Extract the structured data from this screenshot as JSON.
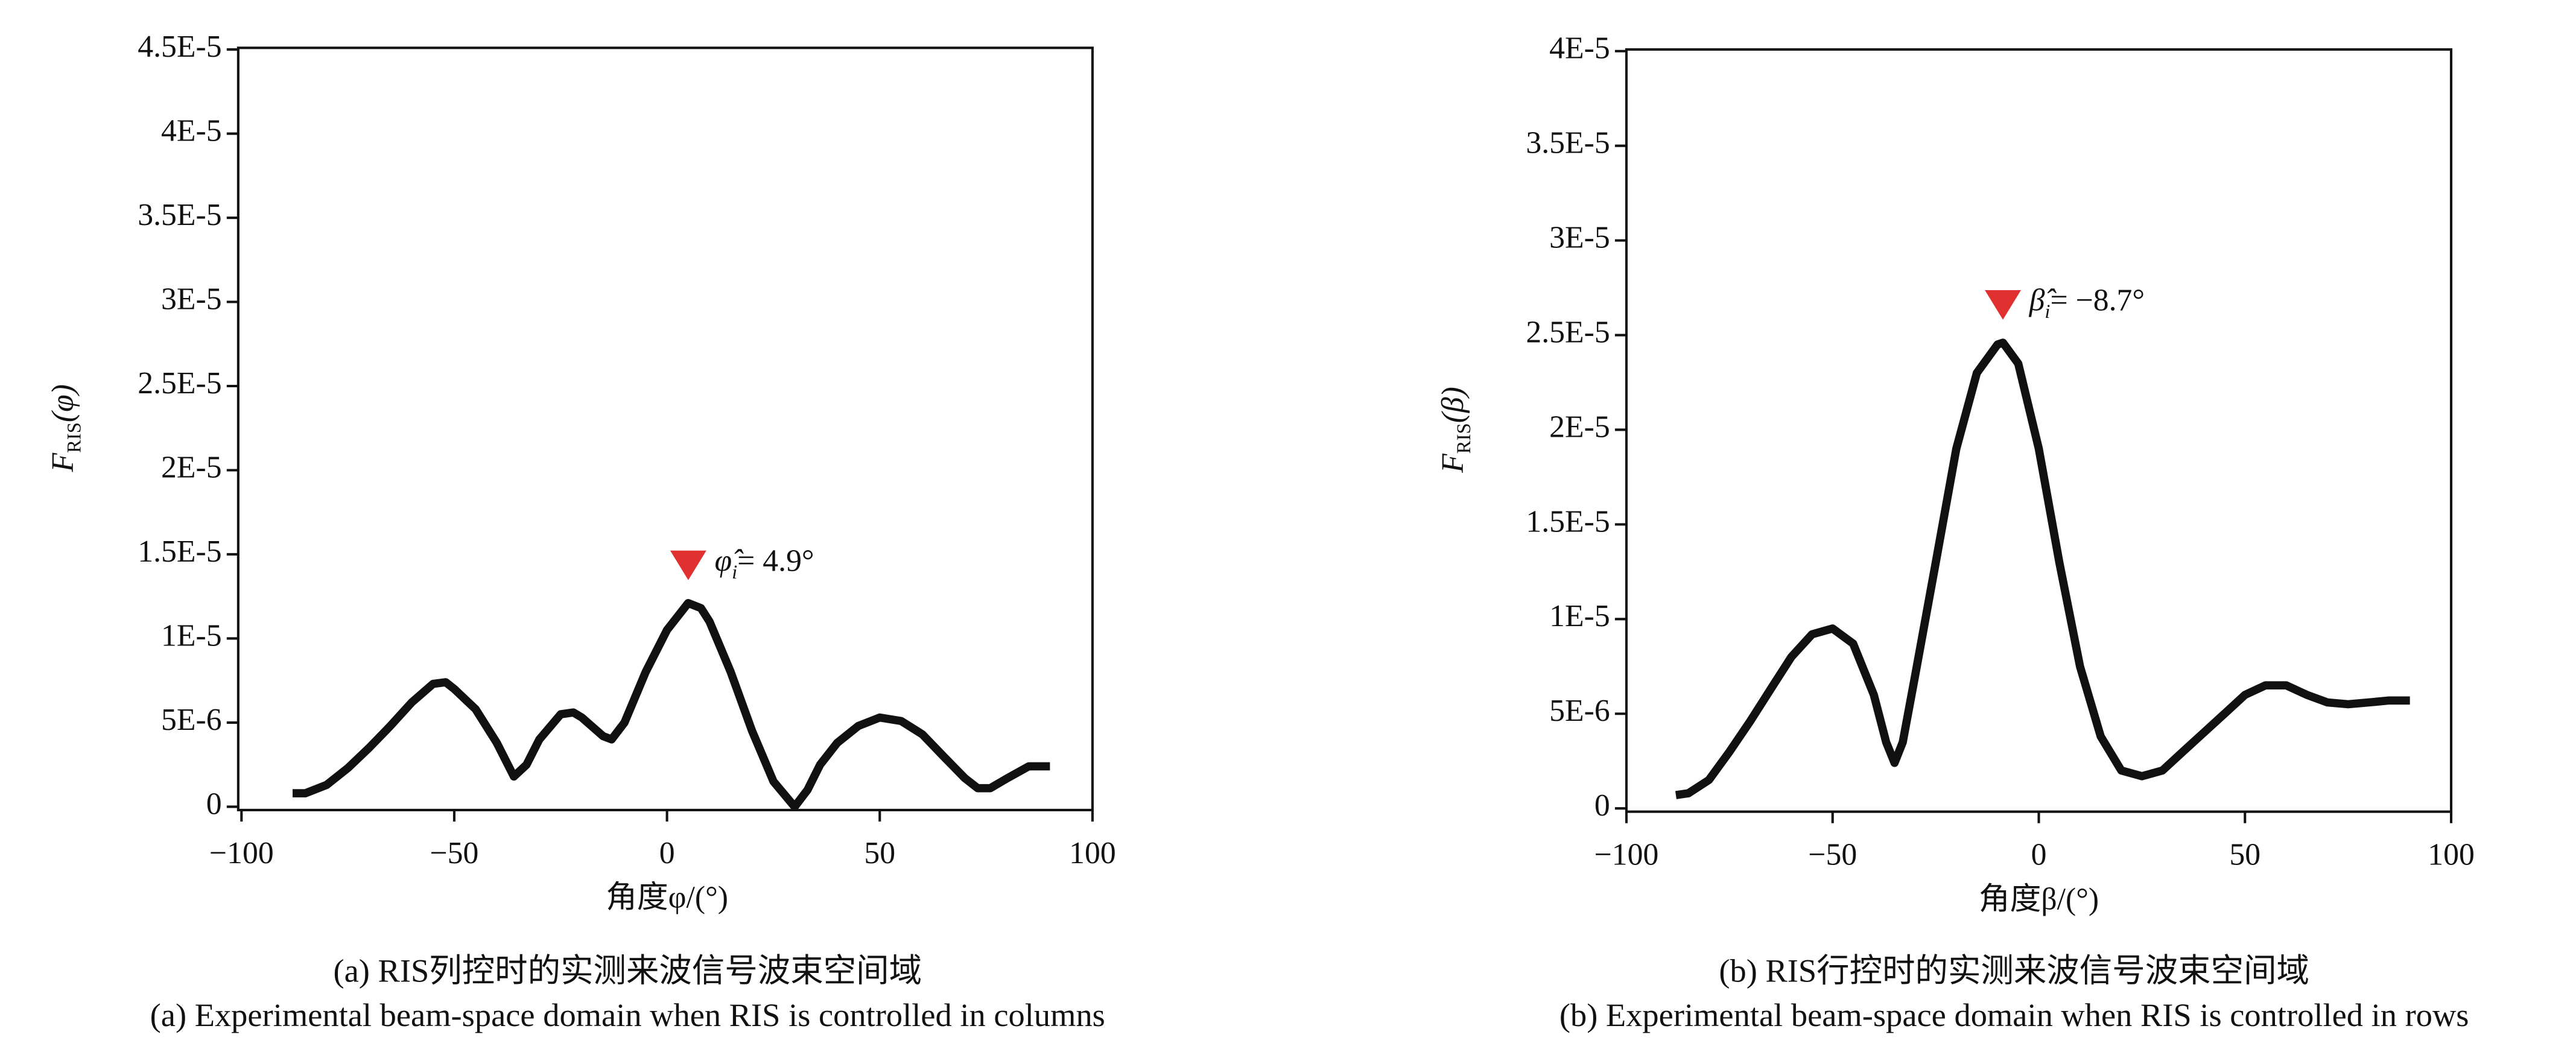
{
  "chart_data": [
    {
      "type": "line",
      "ylabel": {
        "main": "F",
        "sub": "RIS",
        "arg": "(φ)"
      },
      "xlabel": "角度φ/(°)",
      "caption": [
        "(a) RIS列控时的实测来波信号波束空间域",
        "(a) Experimental beam-space domain when RIS is controlled in columns"
      ],
      "annotation": {
        "symbol": "φ̂",
        "sub": "i",
        "text": "=  4.9°"
      },
      "xlim": [
        -100,
        100
      ],
      "xticks": [
        {
          "value": -100,
          "label": "−100"
        },
        {
          "value": -50,
          "label": "−50"
        },
        0,
        50,
        100
      ],
      "ylim": [
        0,
        4.5e-05
      ],
      "yticks": [
        0,
        {
          "value": 5e-06,
          "label": "5E-6"
        },
        {
          "value": 1e-05,
          "label": "1E-5"
        },
        {
          "value": 1.5e-05,
          "label": "1.5E-5"
        },
        {
          "value": 2e-05,
          "label": "2E-5"
        },
        {
          "value": 2.5e-05,
          "label": "2.5E-5"
        },
        {
          "value": 3e-05,
          "label": "3E-5"
        },
        {
          "value": 3.5e-05,
          "label": "3.5E-5"
        },
        {
          "value": 4e-05,
          "label": "4E-5"
        },
        {
          "value": 4.5e-05,
          "label": "4.5E-5"
        }
      ],
      "color": "#111111",
      "marker_color": "#e03030",
      "x": [
        -88,
        -85,
        -80,
        -75,
        -70,
        -65,
        -60,
        -55,
        -52,
        -50,
        -45,
        -40,
        -36,
        -33,
        -30,
        -25,
        -22,
        -20,
        -15,
        -13,
        -10,
        -5,
        0,
        5,
        8,
        10,
        15,
        20,
        25,
        30,
        33,
        36,
        40,
        45,
        50,
        55,
        60,
        65,
        70,
        73,
        76,
        80,
        85,
        90
      ],
      "values": [
        8e-07,
        8e-07,
        1.3e-06,
        2.3e-06,
        3.5e-06,
        4.8e-06,
        6.2e-06,
        7.3e-06,
        7.4e-06,
        7e-06,
        5.8e-06,
        3.8e-06,
        1.8e-06,
        2.5e-06,
        4e-06,
        5.5e-06,
        5.6e-06,
        5.3e-06,
        4.2e-06,
        4e-06,
        5e-06,
        8e-06,
        1.05e-05,
        1.21e-05,
        1.18e-05,
        1.1e-05,
        8e-06,
        4.5e-06,
        1.5e-06,
        0,
        1e-06,
        2.5e-06,
        3.8e-06,
        4.8e-06,
        5.3e-06,
        5.1e-06,
        4.3e-06,
        3e-06,
        1.7e-06,
        1.1e-06,
        1.1e-06,
        1.7e-06,
        2.4e-06,
        2.4e-06
      ]
    },
    {
      "type": "line",
      "ylabel": {
        "main": "F",
        "sub": "RIS",
        "arg": "(β)"
      },
      "xlabel": "角度β/(°)",
      "caption": [
        "(b) RIS行控时的实测来波信号波束空间域",
        "(b) Experimental beam-space domain when RIS is controlled in rows"
      ],
      "annotation": {
        "symbol": "β̂",
        "sub": "i",
        "text": "= −8.7°"
      },
      "xlim": [
        -100,
        100
      ],
      "xticks": [
        {
          "value": -100,
          "label": "−100"
        },
        {
          "value": -50,
          "label": "−50"
        },
        0,
        50,
        100
      ],
      "ylim": [
        0,
        4e-05
      ],
      "yticks": [
        0,
        {
          "value": 5e-06,
          "label": "5E-6"
        },
        {
          "value": 1e-05,
          "label": "1E-5"
        },
        {
          "value": 1.5e-05,
          "label": "1.5E-5"
        },
        {
          "value": 2e-05,
          "label": "2E-5"
        },
        {
          "value": 2.5e-05,
          "label": "2.5E-5"
        },
        {
          "value": 3e-05,
          "label": "3E-5"
        },
        {
          "value": 3.5e-05,
          "label": "3.5E-5"
        },
        {
          "value": 4e-05,
          "label": "4E-5"
        }
      ],
      "color": "#111111",
      "marker_color": "#e03030",
      "x": [
        -88,
        -85,
        -80,
        -75,
        -70,
        -65,
        -60,
        -55,
        -50,
        -45,
        -40,
        -37,
        -35,
        -33,
        -30,
        -25,
        -20,
        -15,
        -10,
        -8.7,
        -5,
        0,
        5,
        10,
        15,
        20,
        25,
        30,
        35,
        40,
        45,
        50,
        55,
        60,
        65,
        70,
        75,
        80,
        85,
        90
      ],
      "values": [
        7e-07,
        8e-07,
        1.5e-06,
        3e-06,
        4.6e-06,
        6.3e-06,
        8e-06,
        9.2e-06,
        9.5e-06,
        8.7e-06,
        6e-06,
        3.5e-06,
        2.4e-06,
        3.5e-06,
        7e-06,
        1.3e-05,
        1.9e-05,
        2.3e-05,
        2.45e-05,
        2.46e-05,
        2.35e-05,
        1.9e-05,
        1.3e-05,
        7.5e-06,
        3.8e-06,
        2e-06,
        1.7e-06,
        2e-06,
        3e-06,
        4e-06,
        5e-06,
        6e-06,
        6.5e-06,
        6.5e-06,
        6e-06,
        5.6e-06,
        5.5e-06,
        5.6e-06,
        5.7e-06,
        5.7e-06
      ]
    }
  ]
}
